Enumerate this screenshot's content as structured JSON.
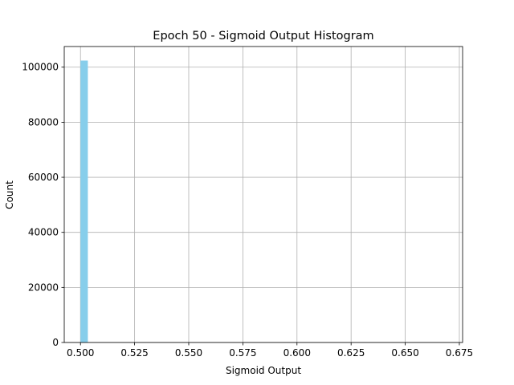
{
  "chart_data": {
    "type": "bar",
    "title": "Epoch 50 - Sigmoid Output Histogram",
    "xlabel": "Sigmoid Output",
    "ylabel": "Count",
    "xlim": [
      0.4925,
      0.6765
    ],
    "ylim": [
      0,
      107500
    ],
    "xticks": [
      "0.500",
      "0.525",
      "0.550",
      "0.575",
      "0.600",
      "0.625",
      "0.650",
      "0.675"
    ],
    "yticks": [
      "0",
      "20000",
      "40000",
      "60000",
      "80000",
      "100000"
    ],
    "grid": true,
    "bins": [
      {
        "x0": 0.5,
        "x1": 0.5034,
        "count": 102400
      }
    ],
    "colors": {
      "bar": "#87ceeb",
      "grid": "#b0b0b0",
      "axis": "#000000"
    }
  }
}
